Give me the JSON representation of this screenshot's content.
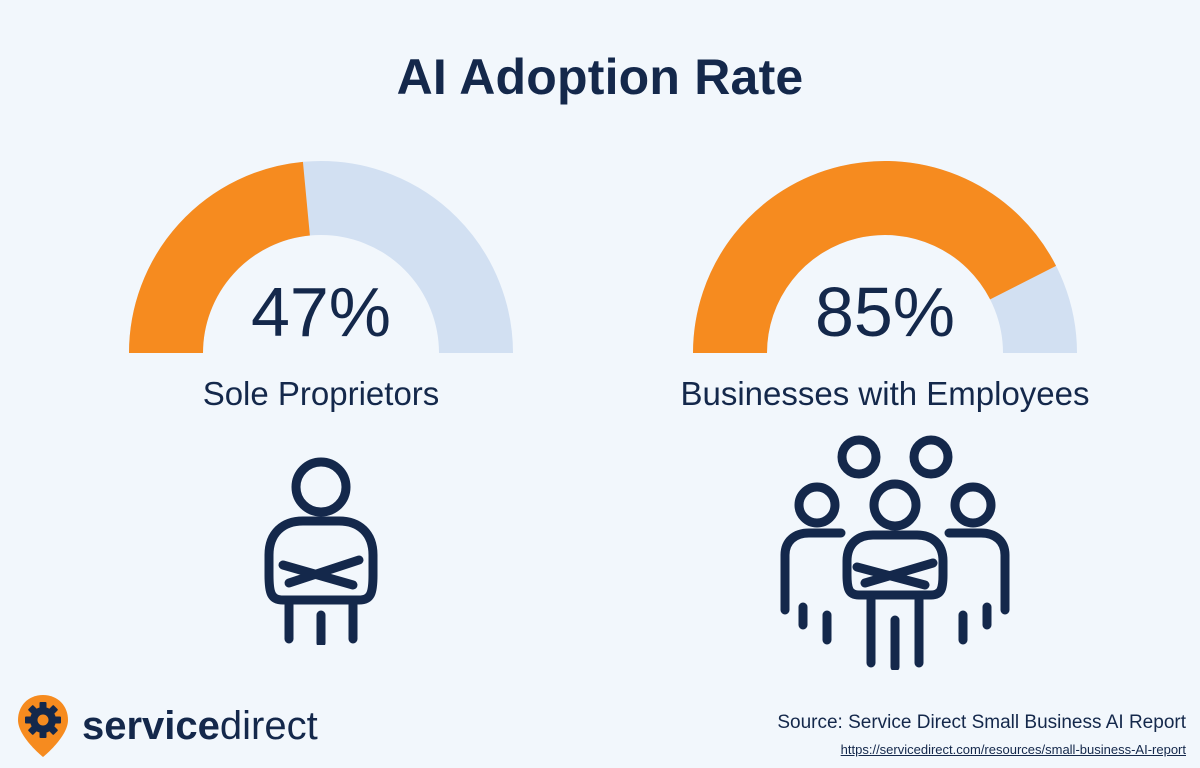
{
  "title": "AI Adoption Rate",
  "colors": {
    "accent": "#f68b1f",
    "track": "#d2e0f2",
    "navy": "#14284b",
    "background": "#f2f7fc"
  },
  "chart_data": [
    {
      "type": "gauge",
      "value": 47,
      "max": 100,
      "label": "Sole Proprietors",
      "display": "47%",
      "icon": "single-person-icon"
    },
    {
      "type": "gauge",
      "value": 85,
      "max": 100,
      "label": "Businesses with Employees",
      "display": "85%",
      "icon": "group-of-people-icon"
    }
  ],
  "footer": {
    "logo_bold": "service",
    "logo_light": "direct",
    "logo_icon": "gear-location-pin-icon",
    "source": "Source: Service Direct Small Business AI Report",
    "source_url": "https://servicedirect.com/resources/small-business-AI-report"
  }
}
